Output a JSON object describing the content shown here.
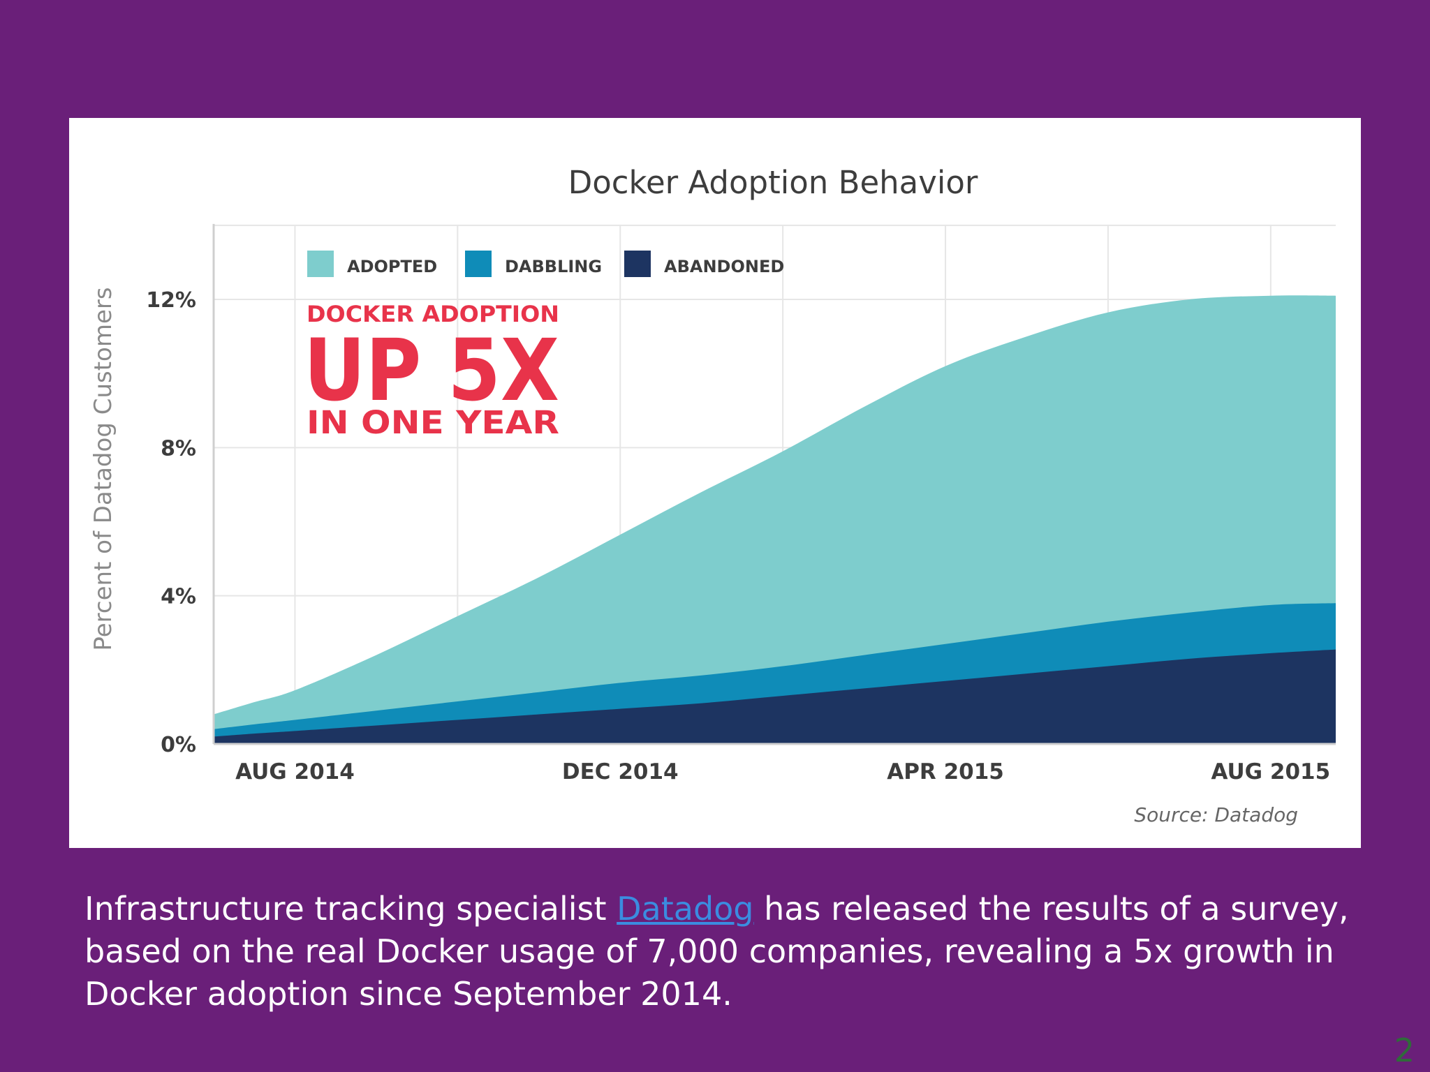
{
  "slide": {
    "caption_before": "Infrastructure tracking specialist ",
    "caption_link": "Datadog",
    "caption_after": " has released the results of a survey, based on the real Docker usage of 7,000 companies, revealing a 5x growth in Docker adoption since September 2014.",
    "page_number": "2"
  },
  "chart_data": {
    "type": "area",
    "stacked": true,
    "title": "Docker Adoption Behavior",
    "ylabel": "Percent of Datadog Customers",
    "xlabel": "",
    "ylim": [
      0,
      14
    ],
    "yticks": [
      0,
      4,
      8,
      12
    ],
    "ytick_labels": [
      "0%",
      "4%",
      "8%",
      "12%"
    ],
    "xtick_labels": [
      "AUG 2014",
      "DEC 2014",
      "APR 2015",
      "AUG 2015"
    ],
    "xtick_positions": [
      1,
      5,
      9,
      13
    ],
    "x": [
      0.0,
      0.5,
      1,
      2,
      3,
      4,
      5,
      6,
      7,
      8,
      9,
      10,
      11,
      12,
      13,
      13.8
    ],
    "series": [
      {
        "name": "ABANDONED",
        "color": "#1d3461",
        "values": [
          0.2,
          0.28,
          0.35,
          0.5,
          0.65,
          0.8,
          0.95,
          1.1,
          1.3,
          1.5,
          1.7,
          1.9,
          2.1,
          2.3,
          2.45,
          2.55
        ]
      },
      {
        "name": "DABBLING",
        "color": "#0f8cb8",
        "values": [
          0.2,
          0.25,
          0.3,
          0.4,
          0.5,
          0.6,
          0.7,
          0.75,
          0.8,
          0.9,
          1.0,
          1.1,
          1.2,
          1.25,
          1.3,
          1.25
        ]
      },
      {
        "name": "ADOPTED",
        "color": "#7ecdcd",
        "values": [
          0.4,
          0.6,
          0.8,
          1.5,
          2.3,
          3.1,
          4.0,
          4.95,
          5.8,
          6.7,
          7.5,
          8.0,
          8.35,
          8.45,
          8.35,
          8.3
        ]
      }
    ],
    "legend_order": [
      "ADOPTED",
      "DABBLING",
      "ABANDONED"
    ],
    "legend_position": "top-left",
    "grid": true,
    "annotation": {
      "line1": "DOCKER ADOPTION",
      "line2": "UP 5X",
      "line3": "IN ONE YEAR",
      "color": "#e8334a"
    },
    "source": "Source: Datadog"
  }
}
